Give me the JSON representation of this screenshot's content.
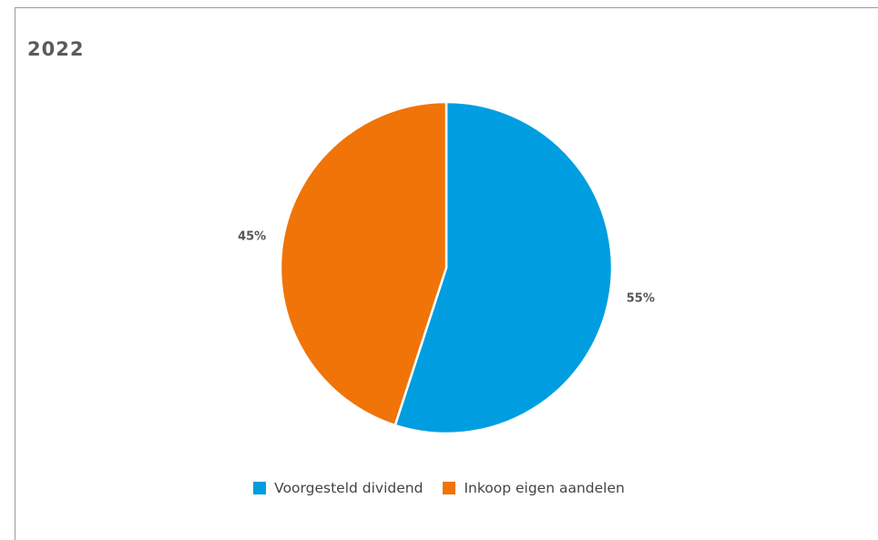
{
  "chart_data": {
    "type": "pie",
    "title": "2022",
    "slices": [
      {
        "name": "Voorgesteld dividend",
        "value": 55,
        "label": "55%",
        "color": "#009ee0"
      },
      {
        "name": "Inkoop eigen aandelen",
        "value": 45,
        "label": "45%",
        "color": "#f07408"
      }
    ],
    "legend_position": "bottom-center",
    "start_angle_deg": 0,
    "direction": "clockwise"
  }
}
